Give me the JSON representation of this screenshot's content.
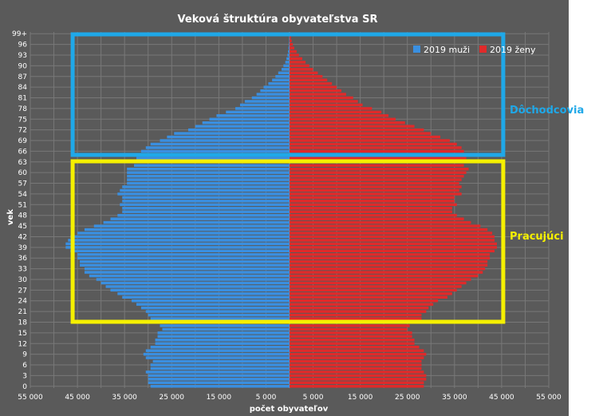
{
  "chart_data": {
    "type": "bar",
    "orientation": "horizontal-population-pyramid",
    "title": "Veková štruktúra obyvateľstva SR",
    "xlabel": "počet obyvateľov",
    "ylabel": "vek",
    "xlim": [
      -55000,
      55000
    ],
    "x_tick_labels": [
      "55 000",
      "45 000",
      "35 000",
      "25 000",
      "15 000",
      "5 000",
      "5 000",
      "15 000",
      "25 000",
      "35 000",
      "45 000",
      "55 000"
    ],
    "x_tick_values": [
      -55000,
      -45000,
      -35000,
      -25000,
      -15000,
      -5000,
      5000,
      15000,
      25000,
      35000,
      45000,
      55000
    ],
    "y_tick_labels": [
      "0",
      "3",
      "6",
      "9",
      "12",
      "15",
      "18",
      "21",
      "24",
      "27",
      "30",
      "33",
      "36",
      "39",
      "42",
      "45",
      "48",
      "51",
      "54",
      "57",
      "60",
      "63",
      "66",
      "69",
      "72",
      "75",
      "78",
      "81",
      "84",
      "87",
      "90",
      "93",
      "96",
      "99+"
    ],
    "grid": true,
    "legend_position": "top-right",
    "legend": [
      "2019 muži",
      "2019 ženy"
    ],
    "colors": {
      "muzi": "#3a8fe0",
      "zeny": "#e02a2a",
      "background": "#5a5a5a",
      "grid": "#7a7a7a",
      "box_retirees": "#1fa8e8",
      "box_workers": "#f5f000"
    },
    "categories": [
      "0",
      "1",
      "2",
      "3",
      "4",
      "5",
      "6",
      "7",
      "8",
      "9",
      "10",
      "11",
      "12",
      "13",
      "14",
      "15",
      "16",
      "17",
      "18",
      "19",
      "20",
      "21",
      "22",
      "23",
      "24",
      "25",
      "26",
      "27",
      "28",
      "29",
      "30",
      "31",
      "32",
      "33",
      "34",
      "35",
      "36",
      "37",
      "38",
      "39",
      "40",
      "41",
      "42",
      "43",
      "44",
      "45",
      "46",
      "47",
      "48",
      "49",
      "50",
      "51",
      "52",
      "53",
      "54",
      "55",
      "56",
      "57",
      "58",
      "59",
      "60",
      "61",
      "62",
      "63",
      "64",
      "65",
      "66",
      "67",
      "68",
      "69",
      "70",
      "71",
      "72",
      "73",
      "74",
      "75",
      "76",
      "77",
      "78",
      "79",
      "80",
      "81",
      "82",
      "83",
      "84",
      "85",
      "86",
      "87",
      "88",
      "89",
      "90",
      "91",
      "92",
      "93",
      "94",
      "95",
      "96",
      "97",
      "98",
      "99+"
    ],
    "series": [
      {
        "name": "2019 muži",
        "values": [
          29500,
          30000,
          30000,
          30000,
          30500,
          29500,
          29500,
          29000,
          30500,
          31000,
          30500,
          29500,
          28500,
          28500,
          28000,
          28000,
          27000,
          27500,
          28500,
          29500,
          30000,
          30500,
          31500,
          32500,
          33500,
          35500,
          36500,
          38000,
          39000,
          40000,
          41000,
          42500,
          43500,
          43500,
          44500,
          44500,
          45000,
          45000,
          46500,
          47500,
          47500,
          47000,
          46500,
          45000,
          43500,
          41500,
          39500,
          38000,
          36500,
          35500,
          35500,
          36000,
          35500,
          35500,
          36500,
          36000,
          35500,
          34500,
          34500,
          34500,
          34500,
          34500,
          33000,
          32500,
          32500,
          32000,
          31500,
          30500,
          29500,
          27500,
          26000,
          24500,
          21500,
          20000,
          18500,
          17000,
          15500,
          13500,
          11500,
          10500,
          9500,
          8000,
          7000,
          6200,
          5500,
          4500,
          3700,
          3000,
          2400,
          1700,
          1300,
          900,
          650,
          450,
          320,
          220,
          140,
          90,
          60,
          60
        ]
      },
      {
        "name": "2019 ženy",
        "values": [
          28500,
          28500,
          29000,
          29000,
          28500,
          28000,
          28000,
          28000,
          28500,
          29000,
          28500,
          27500,
          26500,
          26500,
          26000,
          26000,
          25000,
          25500,
          27000,
          28000,
          28000,
          29000,
          29500,
          30500,
          31500,
          33500,
          34500,
          35500,
          36500,
          37500,
          38500,
          40000,
          41000,
          41500,
          42000,
          42000,
          42500,
          42500,
          43500,
          44000,
          44000,
          43500,
          43500,
          43000,
          42000,
          40500,
          38500,
          37000,
          35500,
          34500,
          34500,
          35500,
          35000,
          35000,
          36500,
          36000,
          36500,
          36000,
          36500,
          37000,
          37500,
          38000,
          37000,
          37000,
          37500,
          37500,
          37000,
          36500,
          35500,
          34000,
          32000,
          30000,
          28500,
          26500,
          24500,
          22500,
          21000,
          19500,
          17500,
          15500,
          14500,
          13500,
          12000,
          11000,
          10000,
          9000,
          8000,
          7000,
          6000,
          5000,
          4200,
          3400,
          2700,
          2000,
          1500,
          1000,
          700,
          450,
          300,
          250
        ]
      }
    ],
    "annotations": [
      {
        "label": "Dôchodcovia",
        "age_from": 65,
        "age_to": 99,
        "x_from": -45000,
        "x_to": 45000,
        "color": "#1fa8e8"
      },
      {
        "label": "Pracujúci",
        "age_from": 18,
        "age_to": 64,
        "x_from": -45000,
        "x_to": 45000,
        "color": "#f5f000"
      }
    ]
  }
}
